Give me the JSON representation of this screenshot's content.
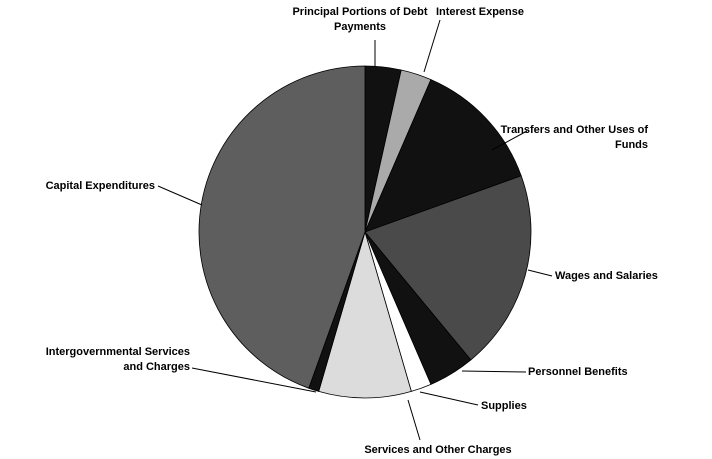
{
  "chart_data": {
    "type": "pie",
    "categories": [
      "Principal Portions of Debt Payments",
      "Interest Expense",
      "Transfers and Other Uses of Funds",
      "Wages and Salaries",
      "Personnel Benefits",
      "Supplies",
      "Services and Other Charges",
      "Intergovernmental Services and Charges",
      "Capital Expenditures"
    ],
    "values": [
      3.5,
      3,
      13,
      19.5,
      4.5,
      2,
      9,
      1,
      44.5
    ],
    "colors": [
      "#111111",
      "#aaaaaa",
      "#111111",
      "#4a4a4a",
      "#111111",
      "#ffffff",
      "#dcdcdc",
      "#111111",
      "#5e5e5e"
    ]
  }
}
